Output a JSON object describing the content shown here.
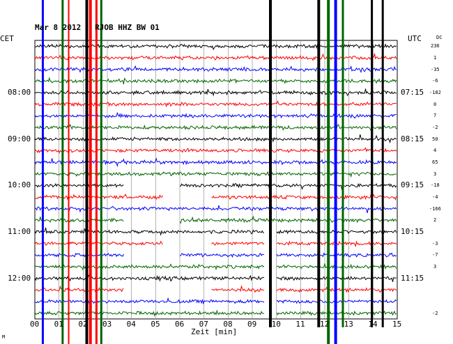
{
  "header": {
    "title": "Mar 8 2012   RJOB HHZ BW 01",
    "left_zone": "CET",
    "right_zone": "UTC",
    "dc_label": "DC"
  },
  "time_labels": {
    "left": [
      "08:00",
      "09:00",
      "10:00",
      "11:00",
      "12:00"
    ],
    "right": [
      "07:15",
      "08:15",
      "09:15",
      "10:15",
      "11:15"
    ]
  },
  "x_axis": {
    "label": "Zeit [min]",
    "ticks": [
      "00",
      "01",
      "02",
      "03",
      "04",
      "05",
      "06",
      "07",
      "08",
      "09",
      "10",
      "11",
      "12",
      "13",
      "14",
      "15"
    ]
  },
  "dc_offsets": [
    "236",
    "1",
    "-35",
    "-6",
    "-182",
    "0",
    "7",
    "-2",
    "50",
    "4",
    "65",
    "3",
    "-18",
    "-4",
    "-166",
    "2",
    "",
    "-3",
    "-7",
    "3",
    "",
    "",
    "",
    "-2"
  ],
  "colors": {
    "trace_cycle": [
      "#000000",
      "#ff0000",
      "#0000ff",
      "#006400"
    ],
    "grid": "#808080"
  },
  "corner_mark": "M"
}
